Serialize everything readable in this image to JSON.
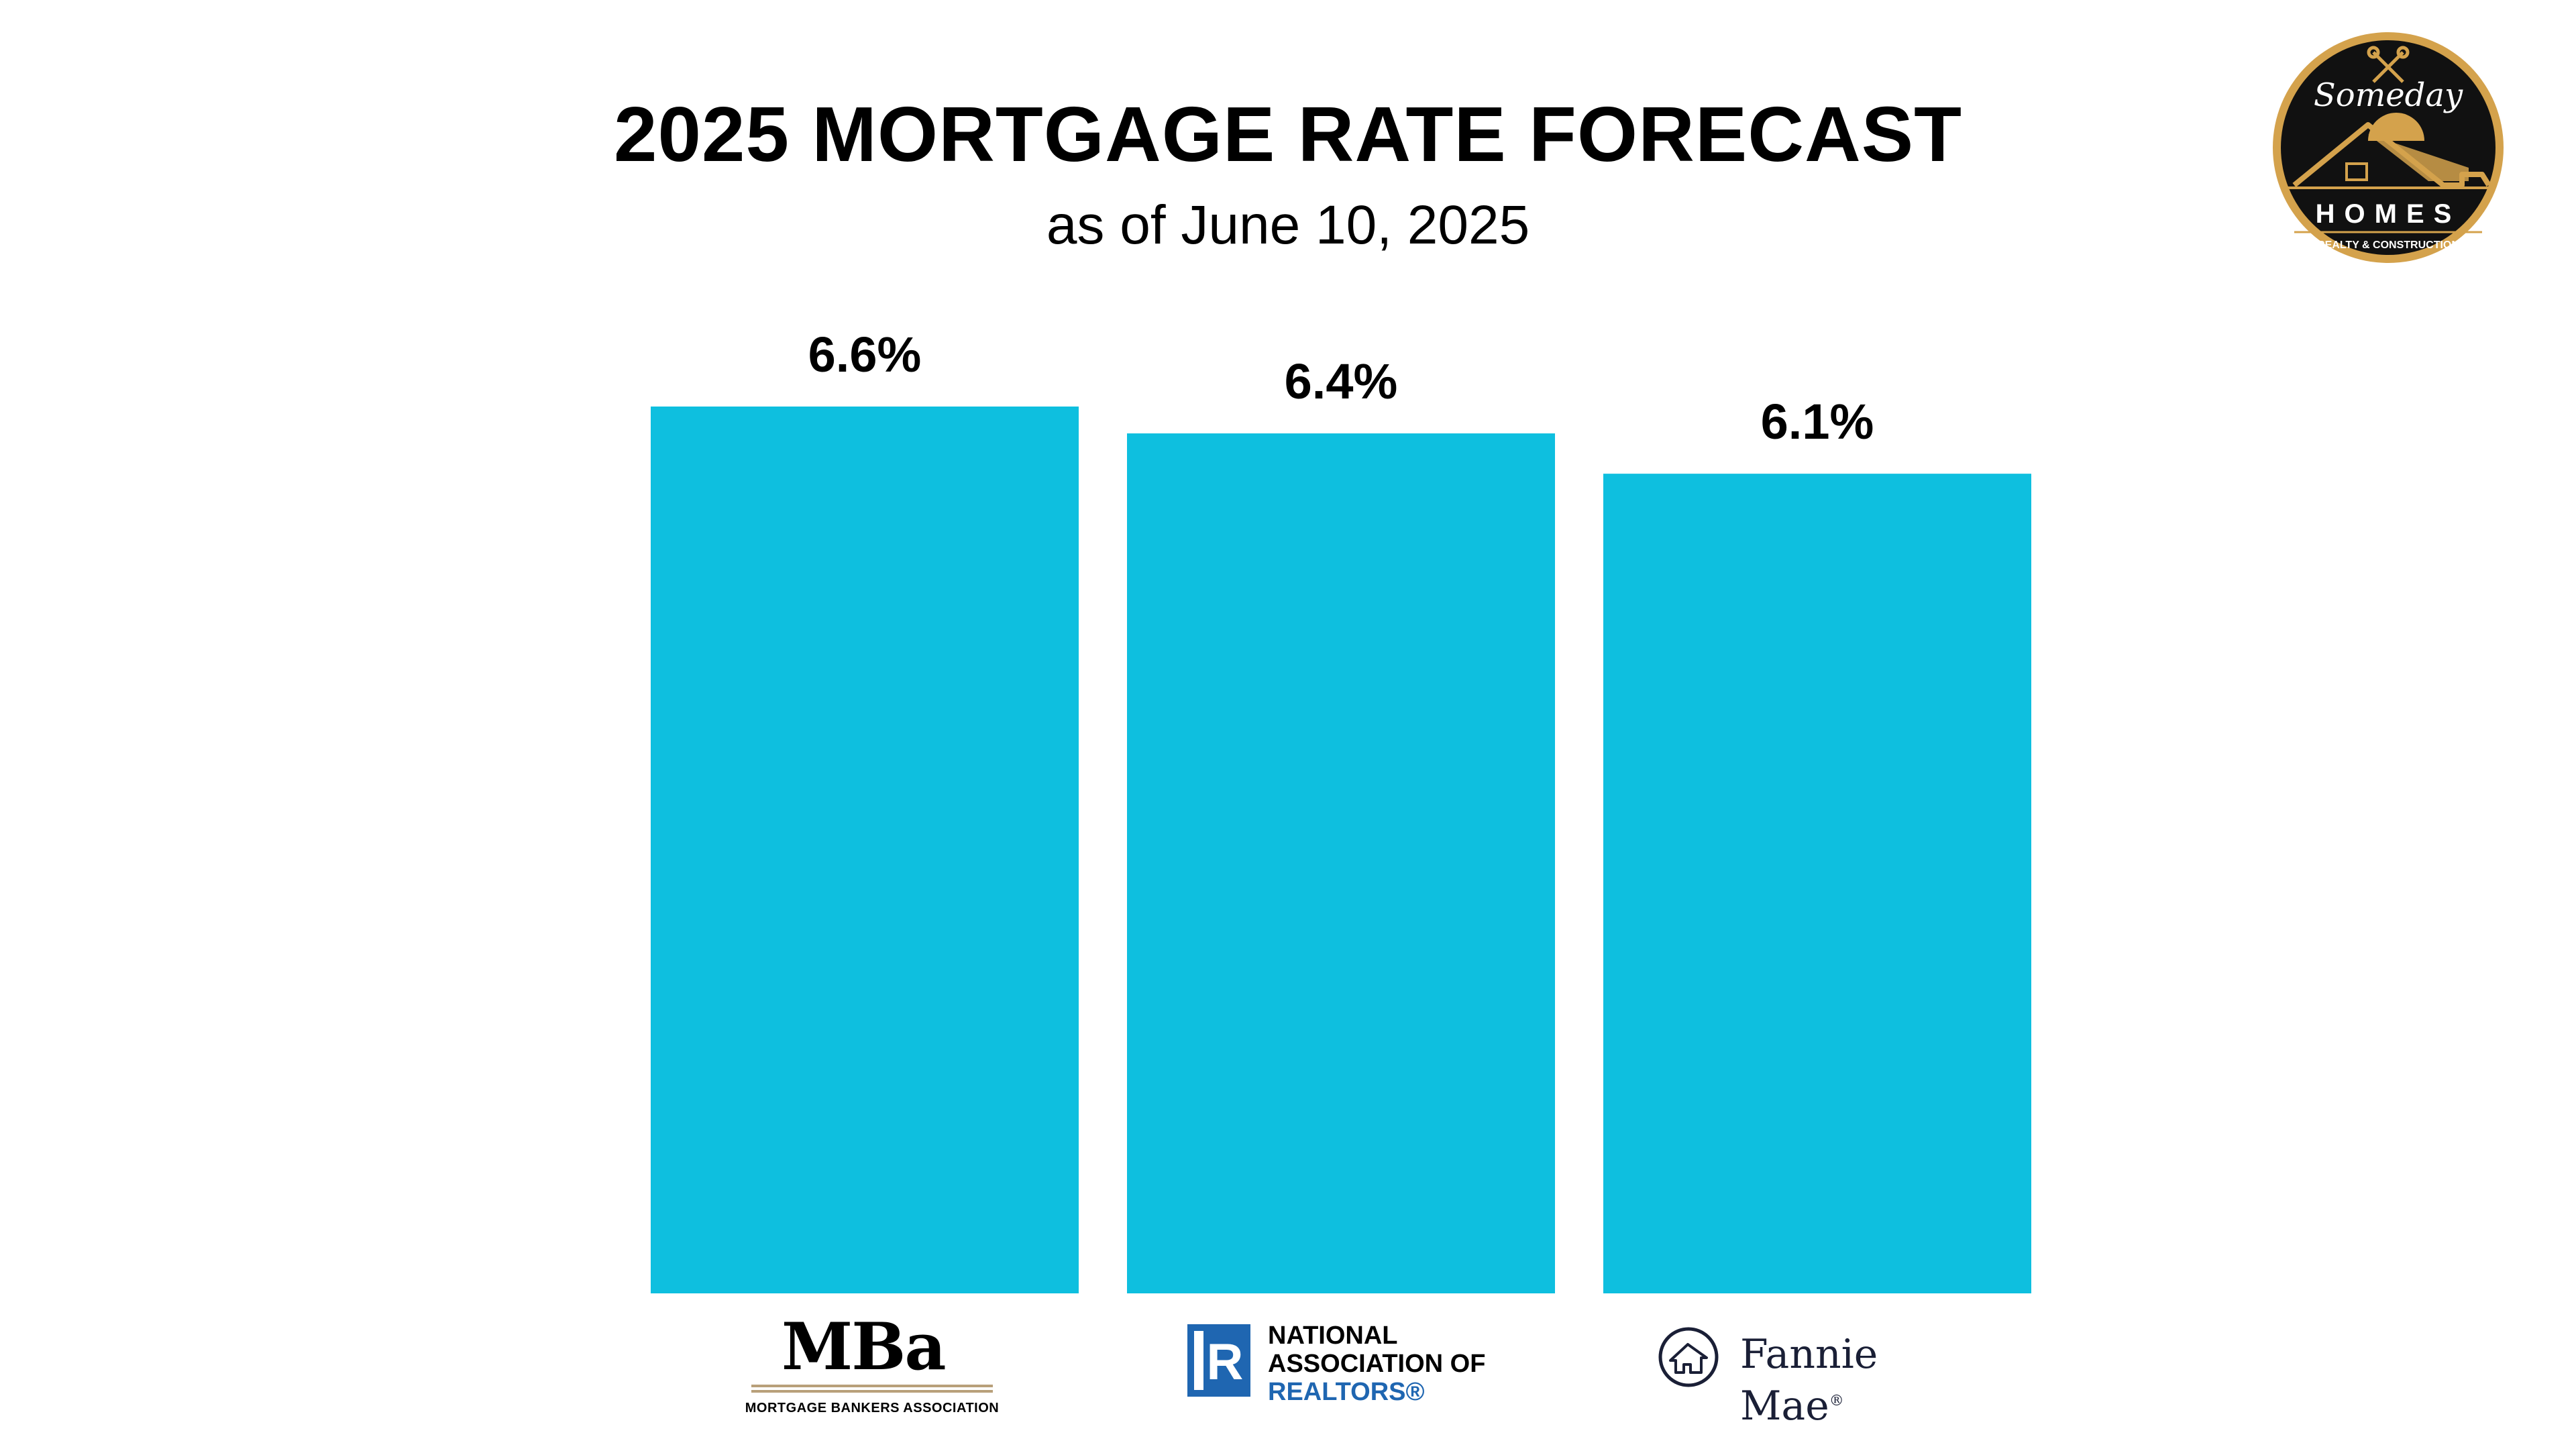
{
  "header": {
    "title": "2025 MORTGAGE RATE FORECAST",
    "subtitle": "as of June 10, 2025"
  },
  "brand": {
    "script_name": "Someday",
    "name": "HOMES",
    "tagline": "REALTY & CONSTRUCTION",
    "colors": {
      "ring": "#d4a24c",
      "fill": "#111111"
    }
  },
  "logos": {
    "mba": {
      "word": "MBa",
      "sub": "MORTGAGE BANKERS ASSOCIATION"
    },
    "nar": {
      "line1": "NATIONAL",
      "line2": "ASSOCIATION OF",
      "line3": "REALTORS®",
      "mark": "R"
    },
    "fannie": {
      "word": "Fannie Mae",
      "mark": "®"
    }
  },
  "chart_data": {
    "type": "bar",
    "title": "2025 MORTGAGE RATE FORECAST",
    "subtitle": "as of June 10, 2025",
    "categories": [
      "Mortgage Bankers Association",
      "National Association of Realtors",
      "Fannie Mae"
    ],
    "values": [
      6.6,
      6.4,
      6.1
    ],
    "data_labels": [
      "6.6%",
      "6.4%",
      "6.1%"
    ],
    "unit": "%",
    "ylim": [
      0,
      6.6
    ],
    "grid": false,
    "legend": "none",
    "bar_color": "#0ebfdf"
  }
}
